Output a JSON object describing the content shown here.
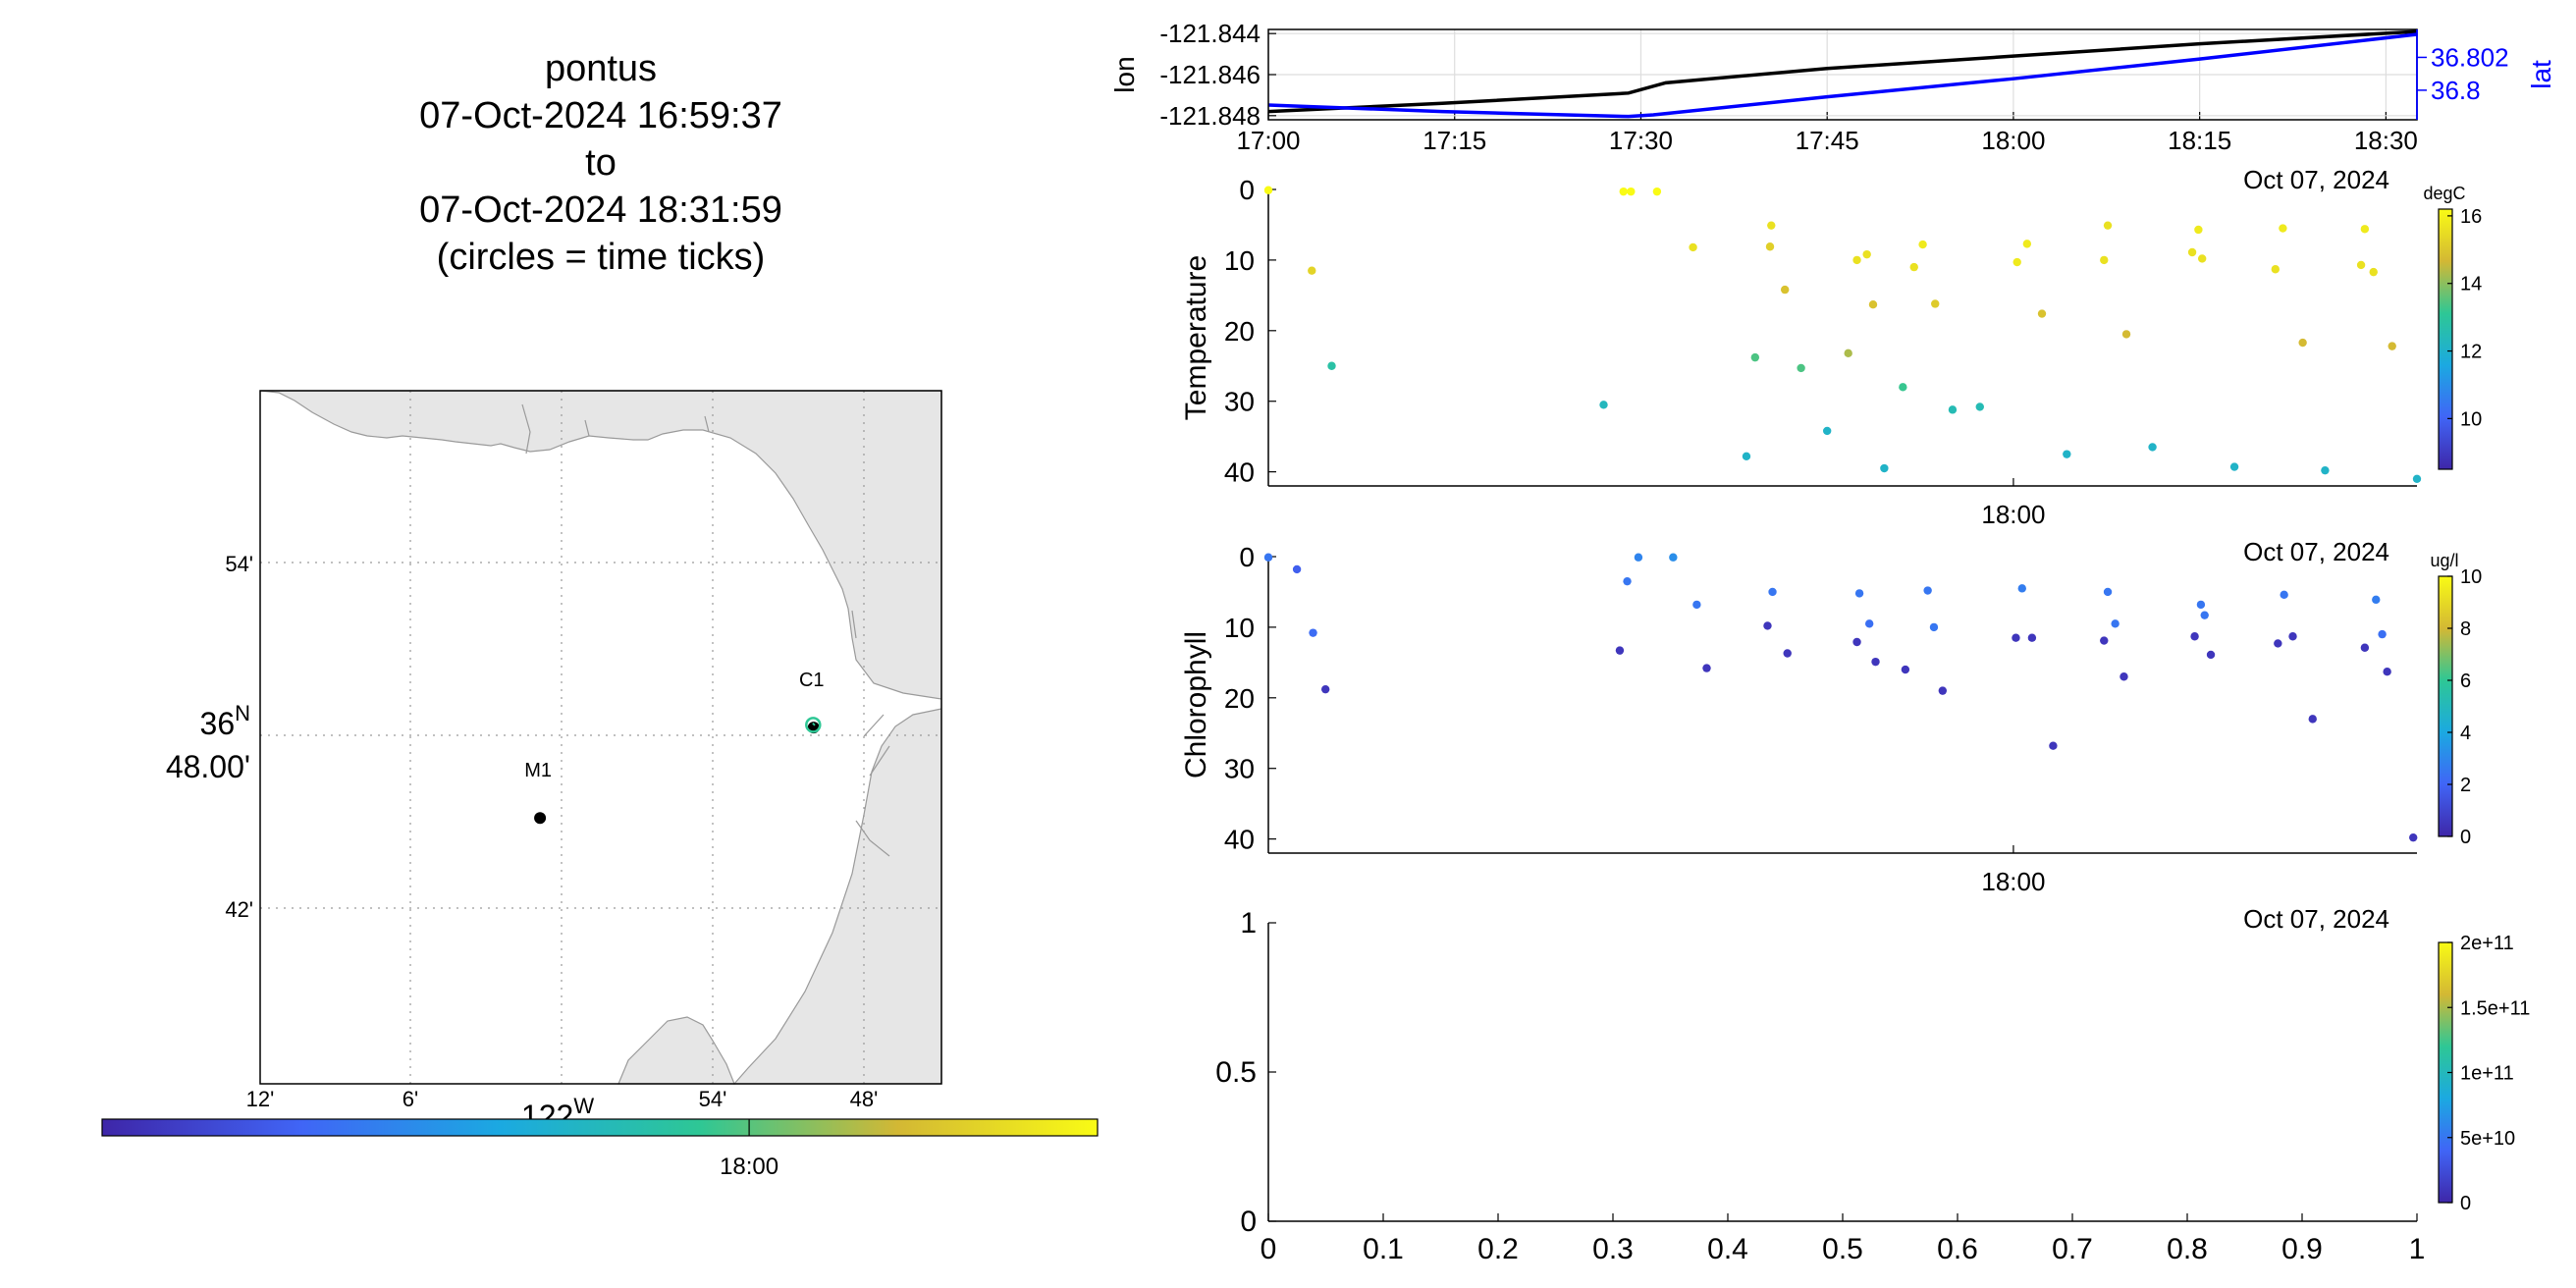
{
  "header": {
    "lines": [
      "pontus",
      "07-Oct-2024 16:59:37",
      "to",
      "07-Oct-2024 18:31:59",
      "(circles = time ticks)"
    ]
  },
  "map": {
    "lat_ticks": [
      "54'",
      "42'"
    ],
    "lat_main": [
      "36",
      "N",
      "48.00'"
    ],
    "lon_ticks": [
      "12'",
      "6'",
      "54'",
      "48'"
    ],
    "lon_main": [
      "122",
      "W"
    ],
    "stations": [
      {
        "label": "M1",
        "lon": -122.022,
        "lat": 36.747
      },
      {
        "label": "C1",
        "lon": -121.848,
        "lat": 36.797
      }
    ],
    "track": {
      "lon": [
        -121.8483,
        -121.8475
      ],
      "lat": [
        36.7985,
        36.7992
      ]
    },
    "land_color": "#e6e6e6",
    "time_colorbar": {
      "label": "18:00",
      "label_frac": 0.65
    }
  },
  "lonlat_chart": {
    "type": "line",
    "ylabel_left": "lon",
    "ylabel_right": "lat",
    "x_tick_labels": [
      "17:00",
      "17:15",
      "17:30",
      "17:45",
      "18:00",
      "18:15",
      "18:30"
    ],
    "x_ticks_min": [
      0,
      15,
      30,
      45,
      60,
      75,
      90
    ],
    "xlim_min": [
      0,
      92.5
    ],
    "date_label": "Oct 07, 2024",
    "left_ticks": [
      "-121.844",
      "-121.846",
      "-121.848"
    ],
    "left_tick_values": [
      -121.844,
      -121.846,
      -121.848
    ],
    "ylim_left": [
      -121.8482,
      -121.8438
    ],
    "right_ticks": [
      "36.802",
      "36.8"
    ],
    "right_tick_values": [
      36.802,
      36.8
    ],
    "ylim_right": [
      36.7982,
      36.8037
    ],
    "series": [
      {
        "name": "lon",
        "axis": "left",
        "color": "#000000",
        "x": [
          0,
          14,
          29,
          32,
          45,
          60,
          75,
          92.5
        ],
        "y": [
          -121.8478,
          -121.8474,
          -121.8469,
          -121.8464,
          -121.8457,
          -121.8451,
          -121.8445,
          -121.8439
        ]
      },
      {
        "name": "lat",
        "axis": "right",
        "color": "#0000ff",
        "x": [
          0,
          14,
          29,
          31,
          45,
          60,
          75,
          92.5
        ],
        "y": [
          36.7991,
          36.7987,
          36.7984,
          36.7985,
          36.7996,
          36.8007,
          36.8019,
          36.8034
        ]
      }
    ]
  },
  "chart_data": [
    {
      "type": "scatter",
      "ylabel": "Temperature",
      "colorbar_label": "degC",
      "colorbar_ticks": [
        10,
        12,
        14,
        16
      ],
      "clim": [
        8.5,
        16.2
      ],
      "x_tick_label": "18:00",
      "x_tick_min": 60,
      "xlim_min": [
        0,
        92.5
      ],
      "date_label": "Oct 07, 2024",
      "y_ticks": [
        0,
        10,
        20,
        30,
        40
      ],
      "ylim": [
        0,
        42
      ],
      "points": [
        [
          0.0,
          0.1,
          16.2
        ],
        [
          3.5,
          11.5,
          15.3
        ],
        [
          5.1,
          25.0,
          12.8
        ],
        [
          28.6,
          0.3,
          16.2
        ],
        [
          29.2,
          0.3,
          16.2
        ],
        [
          31.3,
          0.3,
          16.2
        ],
        [
          27.0,
          30.5,
          12.3
        ],
        [
          34.2,
          8.2,
          15.6
        ],
        [
          38.5,
          37.8,
          12.1
        ],
        [
          40.4,
          8.1,
          15.2
        ],
        [
          40.5,
          5.1,
          15.6
        ],
        [
          41.6,
          14.2,
          14.9
        ],
        [
          39.2,
          23.8,
          13.4
        ],
        [
          42.9,
          25.3,
          13.4
        ],
        [
          45.0,
          34.2,
          12.1
        ],
        [
          46.7,
          23.2,
          14.3
        ],
        [
          47.4,
          10.0,
          15.6
        ],
        [
          48.2,
          9.2,
          15.6
        ],
        [
          48.7,
          16.3,
          14.9
        ],
        [
          52.0,
          11.0,
          15.6
        ],
        [
          52.7,
          7.8,
          15.8
        ],
        [
          53.7,
          16.2,
          15.1
        ],
        [
          51.1,
          28.0,
          13.2
        ],
        [
          55.1,
          31.2,
          12.5
        ],
        [
          57.3,
          30.8,
          12.5
        ],
        [
          49.6,
          39.5,
          12.1
        ],
        [
          60.3,
          10.3,
          15.8
        ],
        [
          61.1,
          7.7,
          15.8
        ],
        [
          62.3,
          17.6,
          14.9
        ],
        [
          64.3,
          37.5,
          12.1
        ],
        [
          67.3,
          10.0,
          15.6
        ],
        [
          67.6,
          5.1,
          15.6
        ],
        [
          69.1,
          20.5,
          14.7
        ],
        [
          71.2,
          36.5,
          12.1
        ],
        [
          74.4,
          8.9,
          15.6
        ],
        [
          75.2,
          9.8,
          15.6
        ],
        [
          74.9,
          5.7,
          15.8
        ],
        [
          77.8,
          39.3,
          12.1
        ],
        [
          81.1,
          11.3,
          15.6
        ],
        [
          81.7,
          5.5,
          15.8
        ],
        [
          83.3,
          21.7,
          14.7
        ],
        [
          85.1,
          39.8,
          12.1
        ],
        [
          88.0,
          10.7,
          15.6
        ],
        [
          88.3,
          5.6,
          15.8
        ],
        [
          89.0,
          11.7,
          15.6
        ],
        [
          90.5,
          22.2,
          14.7
        ],
        [
          92.5,
          41.0,
          12.1
        ]
      ]
    },
    {
      "type": "scatter",
      "ylabel": "Chlorophyll",
      "colorbar_label": "ug/l",
      "colorbar_ticks": [
        0,
        2,
        4,
        6,
        8,
        10
      ],
      "clim": [
        0,
        10
      ],
      "x_tick_label": "18:00",
      "x_tick_min": 60,
      "xlim_min": [
        0,
        92.5
      ],
      "date_label": "Oct 07, 2024",
      "y_ticks": [
        0,
        10,
        20,
        30,
        40
      ],
      "ylim": [
        0,
        42
      ],
      "points": [
        [
          0.0,
          0.1,
          2.5
        ],
        [
          2.3,
          1.8,
          1.8
        ],
        [
          3.6,
          10.8,
          2.2
        ],
        [
          4.6,
          18.8,
          0.5
        ],
        [
          28.3,
          13.3,
          0.5
        ],
        [
          28.9,
          3.5,
          2.5
        ],
        [
          29.8,
          0.1,
          2.9
        ],
        [
          32.6,
          0.1,
          3.2
        ],
        [
          34.5,
          6.8,
          2.5
        ],
        [
          35.3,
          15.8,
          0.5
        ],
        [
          40.2,
          9.8,
          0.5
        ],
        [
          40.6,
          5.0,
          2.5
        ],
        [
          41.8,
          13.7,
          0.5
        ],
        [
          47.6,
          5.2,
          2.5
        ],
        [
          47.4,
          12.1,
          0.5
        ],
        [
          48.4,
          9.5,
          2.3
        ],
        [
          48.9,
          14.9,
          0.5
        ],
        [
          51.3,
          16.0,
          0.5
        ],
        [
          53.1,
          4.8,
          2.5
        ],
        [
          53.6,
          10.0,
          2.5
        ],
        [
          54.3,
          19.0,
          0.5
        ],
        [
          60.7,
          4.5,
          2.7
        ],
        [
          60.2,
          11.5,
          0.5
        ],
        [
          61.5,
          11.5,
          0.5
        ],
        [
          63.2,
          26.8,
          0.5
        ],
        [
          67.6,
          5.0,
          2.5
        ],
        [
          67.3,
          11.9,
          0.5
        ],
        [
          68.2,
          9.5,
          2.5
        ],
        [
          68.9,
          17.0,
          0.5
        ],
        [
          74.6,
          11.3,
          0.5
        ],
        [
          75.1,
          6.8,
          2.5
        ],
        [
          75.4,
          8.3,
          2.5
        ],
        [
          75.9,
          13.9,
          0.5
        ],
        [
          81.8,
          5.4,
          2.5
        ],
        [
          81.3,
          12.3,
          0.5
        ],
        [
          82.5,
          11.3,
          0.5
        ],
        [
          84.1,
          23.0,
          0.5
        ],
        [
          89.2,
          6.1,
          2.7
        ],
        [
          89.7,
          11.0,
          2.3
        ],
        [
          90.1,
          16.3,
          0.5
        ],
        [
          88.3,
          12.9,
          0.5
        ],
        [
          92.2,
          39.8,
          0.5
        ]
      ]
    },
    {
      "type": "scatter",
      "ylabel": "",
      "colorbar_label": "",
      "colorbar_tick_labels": [
        "0",
        "5e+10",
        "1e+11",
        "1.5e+11",
        "2e+11"
      ],
      "colorbar_tick_values": [
        0,
        50000000000.0,
        100000000000.0,
        150000000000.0,
        200000000000.0
      ],
      "clim": [
        0,
        200000000000.0
      ],
      "x_ticks": [
        "0",
        "0.1",
        "0.2",
        "0.3",
        "0.4",
        "0.5",
        "0.6",
        "0.7",
        "0.8",
        "0.9",
        "1"
      ],
      "y_ticks": [
        "0",
        "0.5",
        "1"
      ],
      "xlim": [
        0,
        1
      ],
      "ylim": [
        0,
        1
      ],
      "points": []
    }
  ]
}
